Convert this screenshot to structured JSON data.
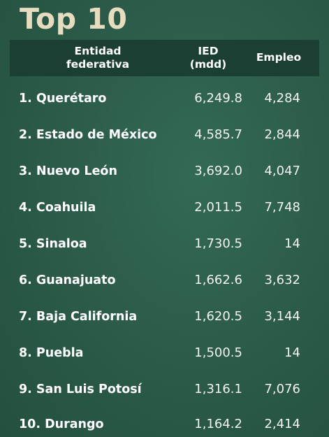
{
  "title": "Top 10",
  "header": {
    "entity_line1": "Entidad",
    "entity_line2": "federativa",
    "ied_line1": "IED",
    "ied_line2": "(mdd)",
    "empleo": "Empleo"
  },
  "rows": [
    {
      "name": "1. Querétaro",
      "ied": "6,249.8",
      "empleo": "4,284"
    },
    {
      "name": "2. Estado de México",
      "ied": "4,585.7",
      "empleo": "2,844"
    },
    {
      "name": "3. Nuevo León",
      "ied": "3,692.0",
      "empleo": "4,047"
    },
    {
      "name": "4. Coahuila",
      "ied": "2,011.5",
      "empleo": "7,748"
    },
    {
      "name": "5. Sinaloa",
      "ied": "1,730.5",
      "empleo": "14"
    },
    {
      "name": "6. Guanajuato",
      "ied": "1,662.6",
      "empleo": "3,632"
    },
    {
      "name": "7. Baja California",
      "ied": "1,620.5",
      "empleo": "3,144"
    },
    {
      "name": "8. Puebla",
      "ied": "1,500.5",
      "empleo": "14"
    },
    {
      "name": "9. San Luis Potosí",
      "ied": "1,316.1",
      "empleo": "7,076"
    },
    {
      "name": "10. Durango",
      "ied": "1,164.2",
      "empleo": "2,414"
    }
  ]
}
